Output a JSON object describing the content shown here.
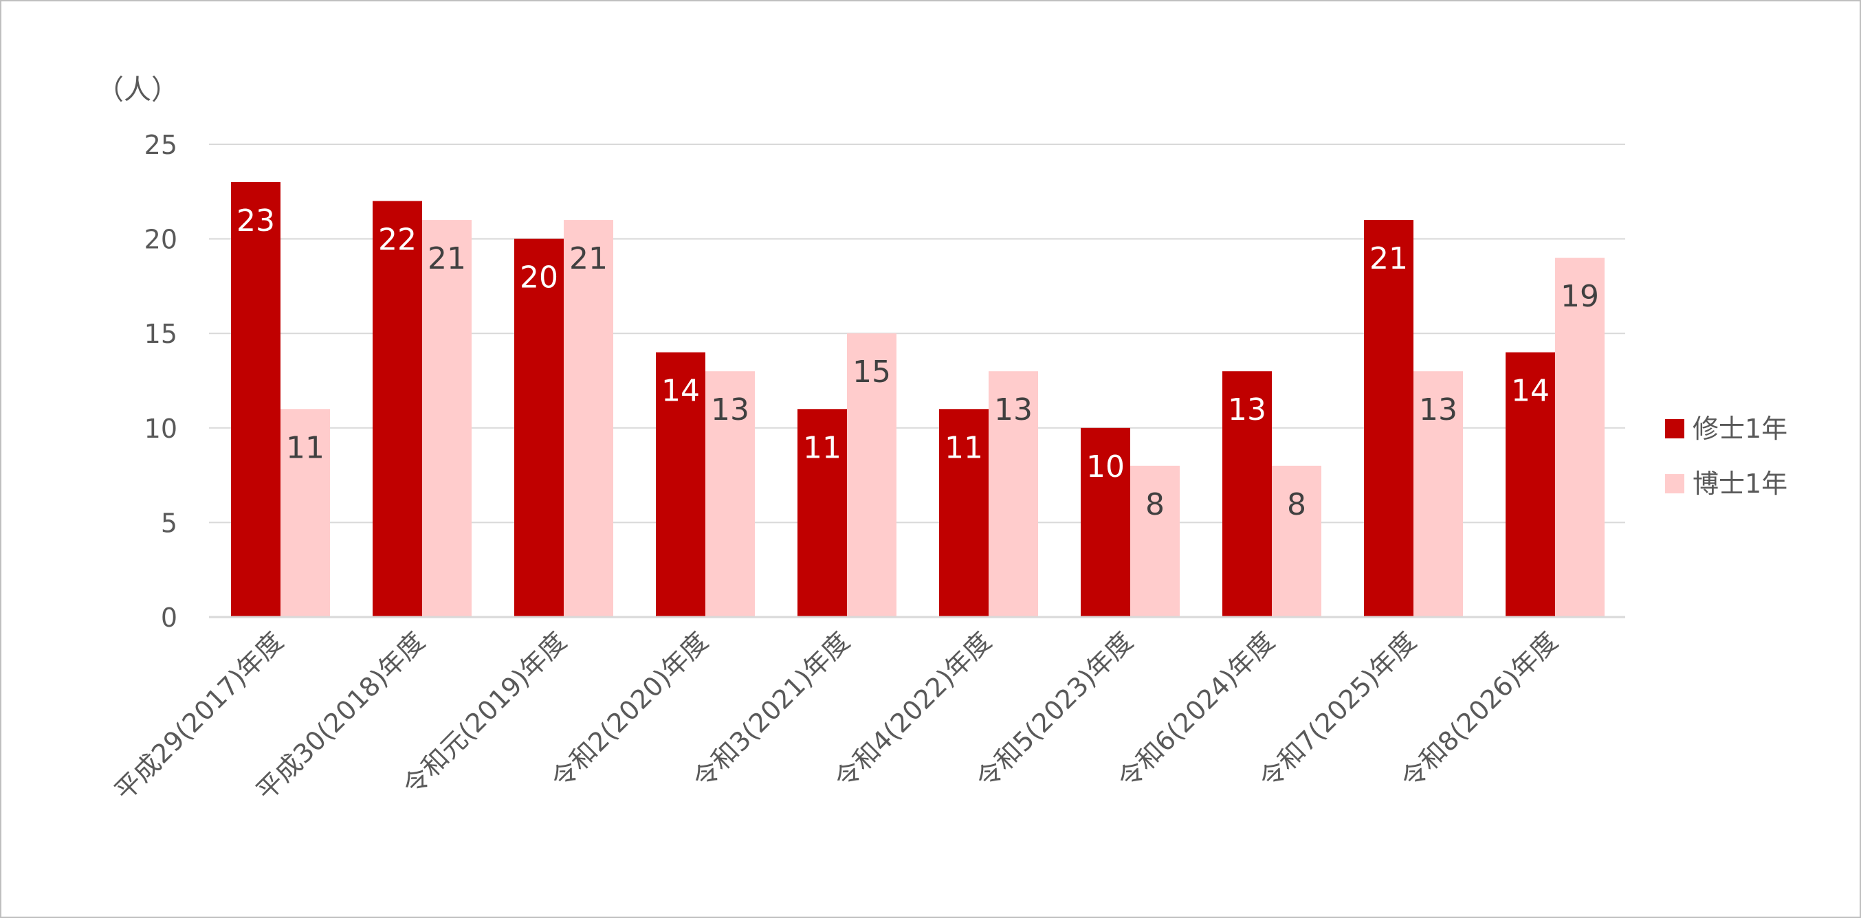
{
  "chart_data": {
    "type": "bar",
    "unit_label": "（人）",
    "categories": [
      "平成29(2017)年度",
      "平成30(2018)年度",
      "令和元(2019)年度",
      "令和2(2020)年度",
      "令和3(2021)年度",
      "令和4(2022)年度",
      "令和5(2023)年度",
      "令和6(2024)年度",
      "令和7(2025)年度",
      "令和8(2026)年度"
    ],
    "series": [
      {
        "name": "修士1年",
        "color": "#c00000",
        "label_color": "#ffffff",
        "values": [
          23,
          22,
          20,
          14,
          11,
          11,
          10,
          13,
          21,
          14
        ]
      },
      {
        "name": "博士1年",
        "color": "#ffcccc",
        "label_color": "#404040",
        "values": [
          11,
          21,
          21,
          13,
          15,
          13,
          8,
          8,
          13,
          19
        ]
      }
    ],
    "yticks": [
      0,
      5,
      10,
      15,
      20,
      25
    ],
    "ylim": [
      0,
      25
    ],
    "grid": true,
    "legend_position": "right",
    "data_labels": true
  }
}
